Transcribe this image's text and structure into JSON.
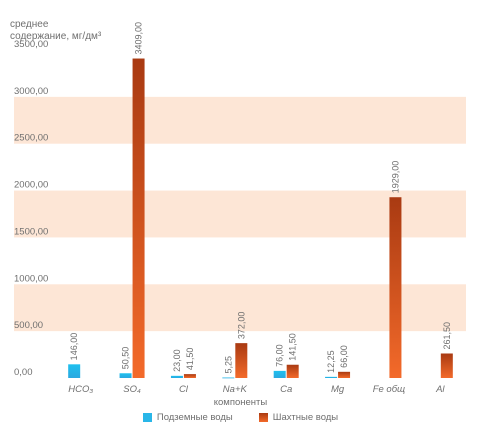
{
  "chart_data": {
    "type": "bar",
    "ylabel_lines": [
      "среднее",
      "содержание, мг/дм³"
    ],
    "xlabel": "компоненты",
    "ylim": [
      0,
      3500
    ],
    "ytick_step": 500,
    "ytick_labels": [
      "0,00",
      "500,00",
      "1000,00",
      "1500,00",
      "2000,00",
      "2500,00",
      "3000,00",
      "3500,00"
    ],
    "band_color": "#fde6d6",
    "categories": [
      "HCO₃",
      "SO₄",
      "Cl",
      "Na+K",
      "Ca",
      "Mg",
      "Fe общ",
      "Al"
    ],
    "series": [
      {
        "name": "Подземные воды",
        "color": "#29b6e8",
        "values": [
          146.0,
          50.5,
          23.0,
          5.25,
          76.0,
          12.25,
          0,
          0
        ],
        "labels": [
          "146,00",
          "50,50",
          "23,00",
          "5,25",
          "76,00",
          "12,25",
          "",
          ""
        ]
      },
      {
        "name": "Шахтные воды",
        "color": "#e05a1f",
        "values": [
          0,
          3409.0,
          41.5,
          372.0,
          141.5,
          66.0,
          1929.0,
          261.5
        ],
        "labels": [
          "",
          "3409,00",
          "41,50",
          "372,00",
          "141,50",
          "66,00",
          "1929,00",
          "261,50"
        ]
      }
    ]
  }
}
